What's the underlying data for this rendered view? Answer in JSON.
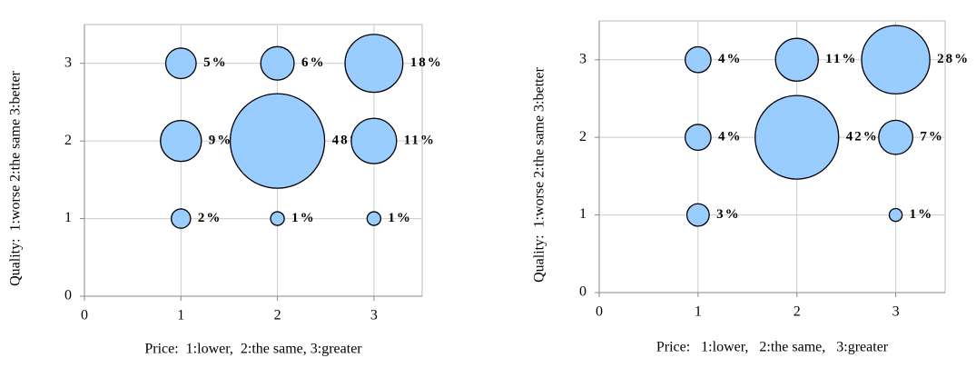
{
  "chart_data": [
    {
      "type": "bubble",
      "x_label": "Price:  1:lower,  2:the same, 3:greater",
      "y_label": "Quality:  1:worse 2:the same 3:better",
      "x": [
        1,
        2,
        3,
        1,
        2,
        3,
        1,
        2,
        3
      ],
      "y": [
        3,
        3,
        3,
        2,
        2,
        2,
        1,
        1,
        1
      ],
      "values": [
        5,
        6,
        18,
        9,
        48,
        11,
        2,
        1,
        1
      ],
      "value_labels": [
        "5%",
        "6%",
        "18%",
        "9%",
        "48%",
        "11%",
        "2%",
        "1%",
        "1%"
      ],
      "color": "#99ccff",
      "xlim": [
        0,
        3.5
      ],
      "ylim": [
        0,
        3.5
      ],
      "xticks": [
        0,
        1,
        2,
        3
      ],
      "yticks": [
        0,
        1,
        2,
        3
      ],
      "grid": true
    },
    {
      "type": "bubble",
      "x_label": "Price:   1:lower,   2:the same,   3:greater",
      "y_label": "Quality:  1:worse 2:the same 3:better",
      "x": [
        1,
        2,
        3,
        1,
        2,
        3,
        1,
        3
      ],
      "y": [
        3,
        3,
        3,
        2,
        2,
        2,
        1,
        1
      ],
      "values": [
        4,
        11,
        28,
        4,
        42,
        7,
        3,
        1
      ],
      "value_labels": [
        "4%",
        "11%",
        "28%",
        "4%",
        "42%",
        "7%",
        "3%",
        "1%"
      ],
      "color": "#99ccff",
      "xlim": [
        0,
        3.5
      ],
      "ylim": [
        0,
        3.5
      ],
      "xticks": [
        0,
        1,
        2,
        3
      ],
      "yticks": [
        0,
        1,
        2,
        3
      ],
      "grid": true
    }
  ]
}
